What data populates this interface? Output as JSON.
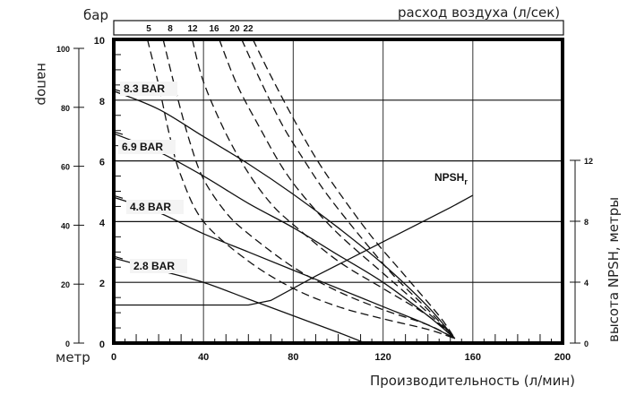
{
  "chart_data": {
    "type": "line",
    "title": "",
    "xlabel": "Производительность (л/мин)",
    "ylabel_left_inner": "бар",
    "ylabel_left_outer": "напор",
    "ylabel_left_outer_unit": "метр",
    "ylabel_right": "высота NPSH, метры",
    "top_axis_label": "расход воздуха (л/сек)",
    "xlim": [
      0,
      200
    ],
    "ylim_bar": [
      0,
      10
    ],
    "ylim_meter": [
      0,
      100
    ],
    "ylim_npsh_m": [
      0,
      12
    ],
    "x_ticks": [
      "0",
      "40",
      "80",
      "120",
      "160",
      "200"
    ],
    "y_ticks_bar": [
      "0",
      "2",
      "4",
      "6",
      "8",
      "10"
    ],
    "y_ticks_meter": [
      "0",
      "20",
      "40",
      "60",
      "80",
      "100"
    ],
    "y_ticks_npsh": [
      "0",
      "4",
      "8",
      "12"
    ],
    "air_flow_ticks": [
      "5",
      "8",
      "12",
      "16",
      "20",
      "22"
    ],
    "grid": true,
    "series": [
      {
        "name": "8.3 BAR",
        "style": "solid",
        "x": [
          0,
          20,
          40,
          60,
          80,
          100,
          120,
          140,
          152
        ],
        "y": [
          8.3,
          7.7,
          6.8,
          5.9,
          4.9,
          3.8,
          2.6,
          1.2,
          0.15
        ]
      },
      {
        "name": "6.9 BAR",
        "style": "solid",
        "x": [
          0,
          20,
          40,
          60,
          80,
          100,
          120,
          140,
          152
        ],
        "y": [
          6.9,
          6.3,
          5.5,
          4.6,
          3.8,
          2.9,
          2.0,
          0.9,
          0.15
        ]
      },
      {
        "name": "4.8 BAR",
        "style": "solid",
        "x": [
          0,
          20,
          40,
          60,
          80,
          100,
          120,
          140,
          152
        ],
        "y": [
          4.8,
          4.3,
          3.6,
          3.0,
          2.4,
          1.8,
          1.2,
          0.6,
          0.15
        ]
      },
      {
        "name": "2.8 BAR",
        "style": "solid",
        "x": [
          0,
          20,
          40,
          60,
          80,
          100,
          112
        ],
        "y": [
          2.8,
          2.4,
          2.0,
          1.45,
          0.9,
          0.35,
          0.0
        ]
      },
      {
        "name": "NPSHr",
        "style": "solid",
        "axis": "npsh_m",
        "x": [
          0,
          20,
          40,
          60,
          70,
          90,
          110,
          130,
          150,
          160
        ],
        "y": [
          2.5,
          2.5,
          2.5,
          2.5,
          2.8,
          4.4,
          5.9,
          7.4,
          8.9,
          9.7
        ]
      },
      {
        "name": "Air 5 л/сек",
        "style": "dashed",
        "x": [
          15,
          20,
          25,
          30,
          40,
          60,
          80,
          100,
          120,
          140,
          152
        ],
        "y": [
          10,
          8.5,
          6.8,
          5.5,
          4.0,
          2.7,
          1.8,
          1.2,
          0.8,
          0.45,
          0.15
        ]
      },
      {
        "name": "Air 8 л/сек",
        "style": "dashed",
        "x": [
          22,
          28,
          34,
          40,
          50,
          60,
          80,
          100,
          120,
          140,
          152
        ],
        "y": [
          10,
          8.2,
          6.6,
          5.4,
          4.3,
          3.6,
          2.5,
          1.7,
          1.1,
          0.6,
          0.15
        ]
      },
      {
        "name": "Air 12 л/сек",
        "style": "dashed",
        "x": [
          35,
          40,
          50,
          60,
          70,
          80,
          100,
          120,
          140,
          152
        ],
        "y": [
          10,
          8.6,
          6.9,
          5.6,
          4.6,
          3.9,
          2.7,
          1.8,
          0.9,
          0.15
        ]
      },
      {
        "name": "Air 16 л/сек",
        "style": "dashed",
        "x": [
          47,
          55,
          65,
          75,
          85,
          100,
          120,
          140,
          152
        ],
        "y": [
          10,
          8.5,
          7.1,
          5.8,
          4.8,
          3.6,
          2.3,
          1.0,
          0.15
        ]
      },
      {
        "name": "Air 20 л/сек",
        "style": "dashed",
        "x": [
          57,
          65,
          75,
          85,
          95,
          110,
          125,
          140,
          152
        ],
        "y": [
          10,
          8.7,
          7.2,
          6.0,
          4.9,
          3.5,
          2.2,
          1.1,
          0.15
        ]
      },
      {
        "name": "Air 22 л/сек",
        "style": "dashed",
        "x": [
          62,
          70,
          80,
          90,
          100,
          115,
          130,
          145,
          152
        ],
        "y": [
          10,
          8.8,
          7.4,
          6.1,
          5.0,
          3.5,
          2.2,
          0.9,
          0.15
        ]
      }
    ],
    "annotations": [
      "8.3 BAR",
      "6.9 BAR",
      "4.8 BAR",
      "2.8 BAR",
      "NPSHr"
    ]
  }
}
